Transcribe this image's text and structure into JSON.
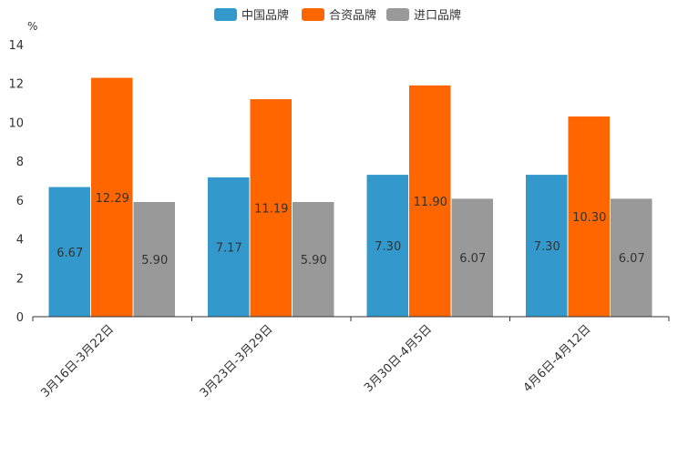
{
  "chart_data": {
    "type": "bar",
    "unit": "%",
    "categories": [
      "3月16日-3月22日",
      "3月23日-3月29日",
      "3月30日-4月5日",
      "4月6日-4月12日"
    ],
    "series": [
      {
        "name": "中国品牌",
        "color": "#3399cc",
        "values": [
          6.67,
          7.17,
          7.3,
          7.3
        ],
        "labels": [
          "6.67",
          "7.17",
          "7.30",
          "7.30"
        ]
      },
      {
        "name": "合资品牌",
        "color": "#ff6600",
        "values": [
          12.29,
          11.19,
          11.9,
          10.3
        ],
        "labels": [
          "12.29",
          "11.19",
          "11.90",
          "10.30"
        ]
      },
      {
        "name": "进口品牌",
        "color": "#999999",
        "values": [
          5.9,
          5.9,
          6.07,
          6.07
        ],
        "labels": [
          "5.90",
          "5.90",
          "6.07",
          "6.07"
        ]
      }
    ],
    "ylim": [
      0,
      14
    ],
    "yticks": [
      0,
      2,
      4,
      6,
      8,
      10,
      12,
      14
    ],
    "ytick_labels": [
      "0",
      "2",
      "4",
      "6",
      "8",
      "10",
      "12",
      "14"
    ],
    "legend_position": "top-center",
    "grid": false
  }
}
